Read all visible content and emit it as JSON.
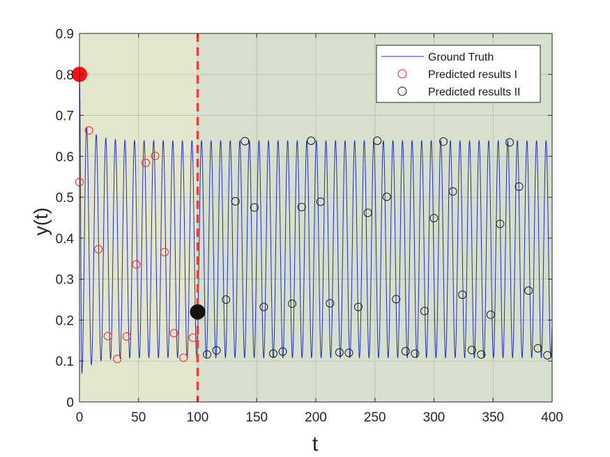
{
  "chart_data": {
    "type": "line",
    "xlabel": "t",
    "ylabel": "y(t)",
    "xlim": [
      0,
      400
    ],
    "ylim": [
      0,
      0.9
    ],
    "xticks": [
      "0",
      "50",
      "100",
      "150",
      "200",
      "250",
      "300",
      "350",
      "400"
    ],
    "yticks": [
      "0",
      "0.1",
      "0.2",
      "0.3",
      "0.4",
      "0.5",
      "0.6",
      "0.7",
      "0.8",
      "0.9"
    ],
    "grid": true,
    "legend_position": "top-right",
    "split_t": 100,
    "regions": [
      {
        "from": 0,
        "to": 100,
        "color": "#e3e6cc"
      },
      {
        "from": 100,
        "to": 400,
        "color": "#d6e0cc"
      }
    ],
    "series": [
      {
        "name": "Ground Truth",
        "kind": "oscillation",
        "color": "#1f2fbf",
        "initial_value": 0.8,
        "period": 8.1,
        "steady_min": 0.108,
        "steady_max": 0.638,
        "first_peak": 0.688,
        "first_trough": 0.07
      },
      {
        "name": "Predicted results I",
        "kind": "markers",
        "color": "#ff2020",
        "points": [
          [
            0,
            0.537
          ],
          [
            8,
            0.663
          ],
          [
            16,
            0.373
          ],
          [
            24,
            0.161
          ],
          [
            32,
            0.105
          ],
          [
            40,
            0.16
          ],
          [
            48,
            0.336
          ],
          [
            56,
            0.584
          ],
          [
            64,
            0.601
          ],
          [
            72,
            0.366
          ],
          [
            80,
            0.168
          ],
          [
            88,
            0.108
          ],
          [
            96,
            0.157
          ]
        ]
      },
      {
        "name": "Predicted results II",
        "kind": "markers",
        "color": "#1a1a1a",
        "points": [
          [
            108,
            0.116
          ],
          [
            116,
            0.126
          ],
          [
            124,
            0.25
          ],
          [
            132,
            0.49
          ],
          [
            140,
            0.637
          ],
          [
            148,
            0.475
          ],
          [
            156,
            0.232
          ],
          [
            164,
            0.118
          ],
          [
            172,
            0.123
          ],
          [
            180,
            0.24
          ],
          [
            188,
            0.476
          ],
          [
            196,
            0.638
          ],
          [
            204,
            0.489
          ],
          [
            212,
            0.241
          ],
          [
            220,
            0.121
          ],
          [
            228,
            0.12
          ],
          [
            236,
            0.232
          ],
          [
            244,
            0.462
          ],
          [
            252,
            0.638
          ],
          [
            260,
            0.501
          ],
          [
            268,
            0.251
          ],
          [
            276,
            0.124
          ],
          [
            284,
            0.118
          ],
          [
            292,
            0.222
          ],
          [
            300,
            0.449
          ],
          [
            308,
            0.636
          ],
          [
            316,
            0.514
          ],
          [
            324,
            0.262
          ],
          [
            332,
            0.127
          ],
          [
            340,
            0.116
          ],
          [
            348,
            0.213
          ],
          [
            356,
            0.435
          ],
          [
            364,
            0.634
          ],
          [
            372,
            0.526
          ],
          [
            380,
            0.272
          ],
          [
            388,
            0.131
          ],
          [
            396,
            0.114
          ]
        ]
      }
    ],
    "highlight_points": [
      {
        "x": 0,
        "y": 0.8,
        "color": "#ff1010"
      },
      {
        "x": 100,
        "y": 0.22,
        "color": "#111111"
      }
    ]
  }
}
